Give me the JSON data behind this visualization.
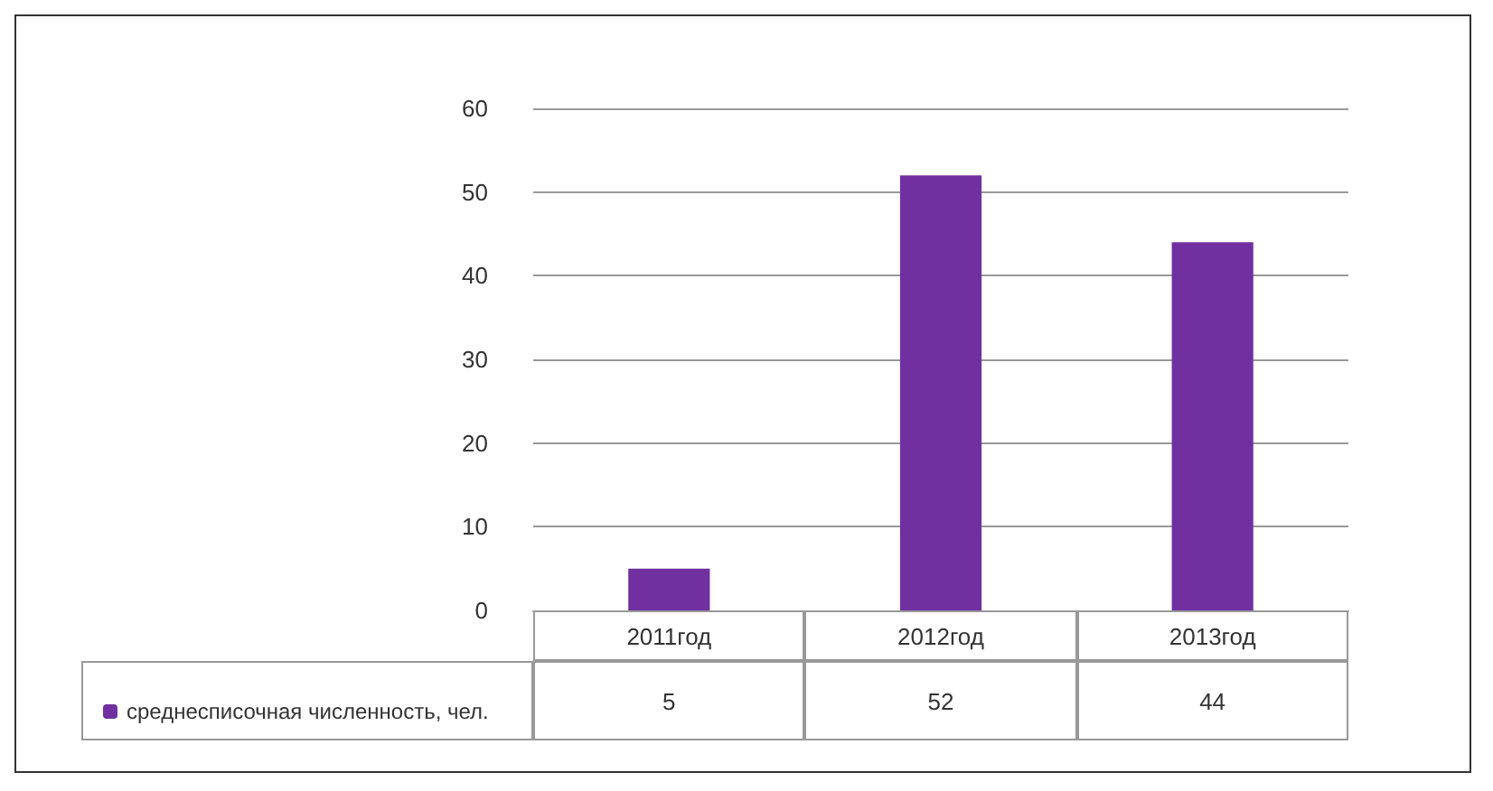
{
  "chart_data": {
    "type": "bar",
    "categories": [
      "2011год",
      "2012год",
      "2013год"
    ],
    "series": [
      {
        "name": "среднесписочная численность, чел.",
        "color": "#7030a0",
        "values": [
          5,
          52,
          44
        ]
      }
    ],
    "ylim": [
      0,
      60
    ],
    "yticks": [
      0,
      10,
      20,
      30,
      40,
      50,
      60
    ],
    "grid": "y",
    "legend": "bottom left",
    "data_labels": true
  }
}
